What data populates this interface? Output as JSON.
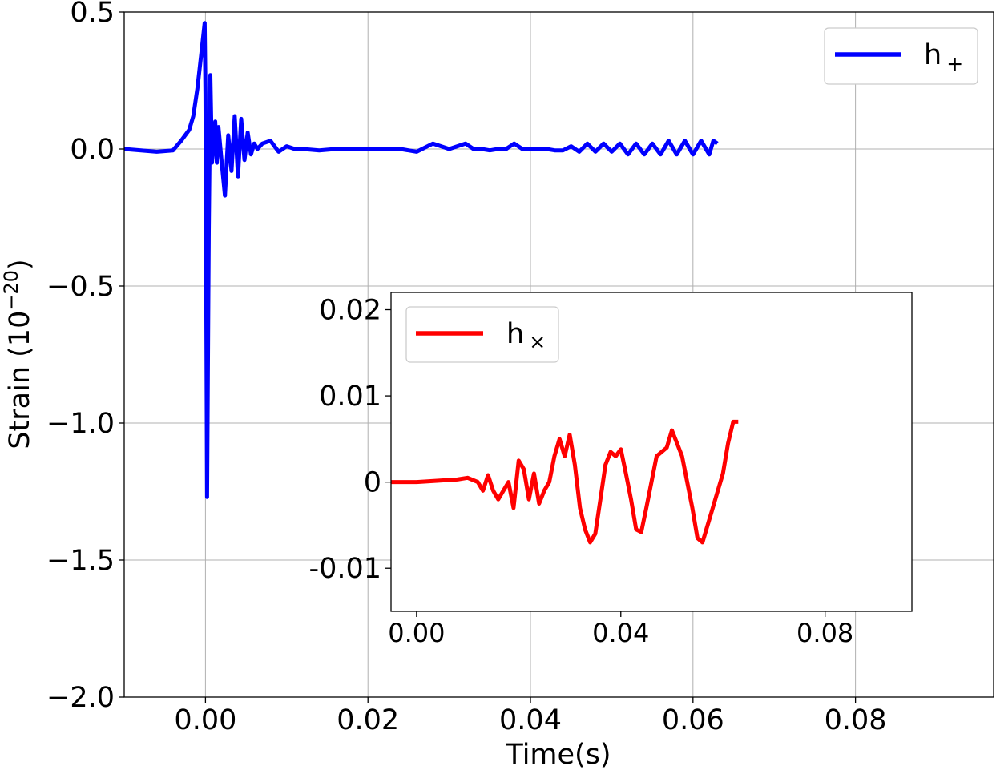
{
  "chart_data": [
    {
      "type": "line",
      "xlabel": "Time(s)",
      "ylabel": "Strain (10",
      "ylabel_sup": "−20",
      "ylabel_close": ")",
      "xlim": [
        -0.01,
        0.097
      ],
      "ylim": [
        -2.0,
        0.5
      ],
      "grid": true,
      "legend": "top-right",
      "xticks": [
        0.0,
        0.02,
        0.04,
        0.06,
        0.08
      ],
      "xtick_labels": [
        "0.00",
        "0.02",
        "0.04",
        "0.06",
        "0.08"
      ],
      "yticks": [
        0.5,
        0.0,
        -0.5,
        -1.0,
        -1.5,
        -2.0
      ],
      "ytick_labels": [
        "0.5",
        "0.0",
        "−0.5",
        "−1.0",
        "−1.5",
        "−2.0"
      ],
      "series": [
        {
          "name": "h",
          "name_sub": "+",
          "color": "#0000ff",
          "x": [
            -0.01,
            -0.006,
            -0.004,
            -0.003,
            -0.002,
            -0.0015,
            -0.001,
            -0.0005,
            -0.0001,
            0.0,
            0.0002,
            0.0004,
            0.0006,
            0.0008,
            0.001,
            0.0012,
            0.0014,
            0.0016,
            0.002,
            0.0024,
            0.0028,
            0.0032,
            0.0036,
            0.004,
            0.0044,
            0.0048,
            0.0052,
            0.0056,
            0.006,
            0.0064,
            0.007,
            0.008,
            0.009,
            0.01,
            0.011,
            0.012,
            0.014,
            0.016,
            0.018,
            0.02,
            0.022,
            0.024,
            0.026,
            0.028,
            0.029,
            0.03,
            0.031,
            0.032,
            0.033,
            0.034,
            0.035,
            0.036,
            0.037,
            0.038,
            0.039,
            0.04,
            0.041,
            0.042,
            0.043,
            0.044,
            0.045,
            0.046,
            0.047,
            0.048,
            0.049,
            0.05,
            0.051,
            0.052,
            0.053,
            0.054,
            0.055,
            0.056,
            0.057,
            0.058,
            0.059,
            0.06,
            0.061,
            0.062,
            0.0625,
            0.063
          ],
          "y": [
            0.0,
            -0.01,
            -0.005,
            0.03,
            0.07,
            0.12,
            0.22,
            0.35,
            0.46,
            0.2,
            -1.27,
            -0.3,
            0.27,
            -0.05,
            0.02,
            0.1,
            -0.05,
            0.08,
            -0.05,
            -0.17,
            0.05,
            -0.08,
            0.12,
            -0.1,
            0.11,
            -0.04,
            0.06,
            -0.02,
            0.02,
            0.0,
            0.02,
            0.03,
            -0.01,
            0.01,
            0.0,
            0.0,
            -0.005,
            0.0,
            0.0,
            0.0,
            0.0,
            0.0,
            -0.01,
            0.02,
            0.01,
            0.0,
            0.01,
            0.02,
            0.0,
            0.0,
            -0.005,
            0.0,
            0.0,
            0.02,
            0.0,
            0.0,
            0.0,
            0.0,
            -0.005,
            -0.005,
            0.01,
            -0.01,
            0.02,
            -0.01,
            0.02,
            -0.01,
            0.02,
            -0.02,
            0.02,
            -0.02,
            0.02,
            -0.02,
            0.03,
            -0.02,
            0.03,
            -0.02,
            0.03,
            -0.02,
            0.03,
            0.02
          ]
        }
      ]
    },
    {
      "type": "line",
      "inset": true,
      "xlim": [
        -0.005,
        0.097
      ],
      "ylim": [
        -0.015,
        0.022
      ],
      "grid": false,
      "legend": "top-left",
      "xticks": [
        0.0,
        0.04,
        0.08
      ],
      "xtick_labels": [
        "0.00",
        "0.04",
        "0.08"
      ],
      "yticks": [
        0.02,
        0.01,
        0,
        -0.01
      ],
      "ytick_labels": [
        "0.02",
        "0.01",
        "0",
        "-0.01"
      ],
      "series": [
        {
          "name": "h",
          "name_sub": "×",
          "color": "#ff0000",
          "x": [
            -0.01,
            0.0,
            0.008,
            0.01,
            0.012,
            0.013,
            0.014,
            0.015,
            0.016,
            0.017,
            0.018,
            0.019,
            0.02,
            0.021,
            0.022,
            0.023,
            0.024,
            0.025,
            0.026,
            0.027,
            0.028,
            0.029,
            0.03,
            0.031,
            0.032,
            0.033,
            0.034,
            0.035,
            0.036,
            0.037,
            0.038,
            0.039,
            0.04,
            0.041,
            0.042,
            0.043,
            0.044,
            0.045,
            0.046,
            0.047,
            0.048,
            0.049,
            0.05,
            0.051,
            0.052,
            0.053,
            0.054,
            0.055,
            0.056,
            0.057,
            0.058,
            0.059,
            0.06,
            0.061,
            0.062,
            0.063
          ],
          "y": [
            0.0,
            0.0,
            0.0003,
            0.0005,
            0.0,
            -0.001,
            0.0008,
            -0.001,
            -0.002,
            -0.001,
            0.0,
            -0.003,
            0.0025,
            0.0015,
            -0.002,
            0.001,
            -0.0025,
            -0.001,
            0.0,
            0.003,
            0.005,
            0.003,
            0.0055,
            0.002,
            -0.003,
            -0.0055,
            -0.007,
            -0.006,
            -0.002,
            0.002,
            0.0035,
            0.003,
            0.0038,
            0.001,
            -0.002,
            -0.0055,
            -0.0058,
            -0.003,
            0.0,
            0.003,
            0.0035,
            0.004,
            0.006,
            0.0045,
            0.003,
            0.0,
            -0.003,
            -0.0065,
            -0.007,
            -0.005,
            -0.003,
            -0.001,
            0.001,
            0.0045,
            0.007,
            0.007
          ]
        }
      ]
    }
  ]
}
